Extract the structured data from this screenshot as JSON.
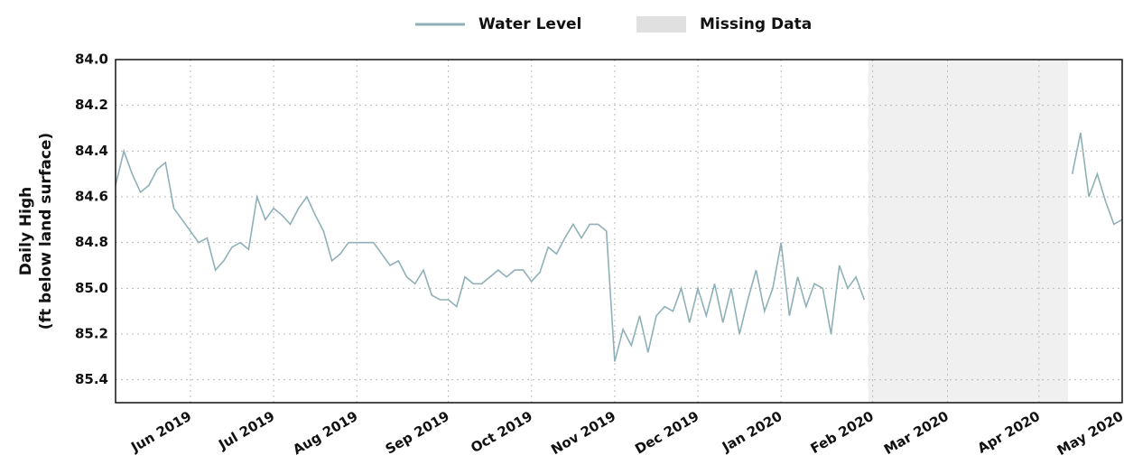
{
  "chart_data": {
    "type": "line",
    "ylabel": [
      "Daily High",
      "(ft below land surface)"
    ],
    "categories": [
      null,
      null,
      null,
      null,
      null,
      null,
      null,
      null,
      null,
      "Jun 2019",
      null,
      null,
      null,
      null,
      null,
      null,
      null,
      null,
      null,
      "Jul 2019",
      null,
      null,
      null,
      null,
      null,
      null,
      null,
      null,
      null,
      "Aug 2019",
      null,
      null,
      null,
      null,
      null,
      null,
      null,
      null,
      null,
      null,
      "Sep 2019",
      null,
      null,
      null,
      null,
      null,
      null,
      null,
      null,
      null,
      "Oct 2019",
      null,
      null,
      null,
      null,
      null,
      null,
      null,
      null,
      null,
      "Nov 2019",
      null,
      null,
      null,
      null,
      null,
      null,
      null,
      null,
      null,
      "Dec 2019",
      null,
      null,
      null,
      null,
      null,
      null,
      null,
      null,
      null,
      "Jan 2020",
      null,
      null,
      null,
      null,
      null,
      null,
      null,
      null,
      null,
      null,
      "Feb 2020",
      null,
      null,
      null,
      null,
      null,
      null,
      null,
      null,
      "Mar 2020",
      null,
      null,
      null,
      null,
      null,
      null,
      null,
      null,
      null,
      null,
      "Apr 2020",
      null,
      null,
      null,
      null,
      null,
      null,
      null,
      null,
      null,
      "May 2020"
    ],
    "series": [
      {
        "name": "Water Level",
        "color": "#8fb0b8",
        "values": [
          84.55,
          84.4,
          84.5,
          84.58,
          84.55,
          84.48,
          84.45,
          84.65,
          84.7,
          84.75,
          84.8,
          84.78,
          84.92,
          84.88,
          84.82,
          84.8,
          84.83,
          84.6,
          84.7,
          84.65,
          84.68,
          84.72,
          84.65,
          84.6,
          84.68,
          84.75,
          84.88,
          84.85,
          84.8,
          84.8,
          84.8,
          84.8,
          84.85,
          84.9,
          84.88,
          84.95,
          84.98,
          84.92,
          85.03,
          85.05,
          85.05,
          85.08,
          84.95,
          84.98,
          84.98,
          84.95,
          84.92,
          84.95,
          84.92,
          84.92,
          84.97,
          84.93,
          84.82,
          84.85,
          84.78,
          84.72,
          84.78,
          84.72,
          84.72,
          84.75,
          85.32,
          85.18,
          85.25,
          85.12,
          85.28,
          85.12,
          85.08,
          85.1,
          85.0,
          85.15,
          85.0,
          85.12,
          84.98,
          85.15,
          85.0,
          85.2,
          85.05,
          84.92,
          85.1,
          85.0,
          84.8,
          85.12,
          84.95,
          85.08,
          84.98,
          85.0,
          85.2,
          84.9,
          85.0,
          84.95,
          85.05,
          null,
          null,
          null,
          null,
          null,
          null,
          null,
          null,
          null,
          null,
          null,
          null,
          null,
          null,
          null,
          null,
          null,
          null,
          null,
          null,
          null,
          null,
          null,
          null,
          84.5,
          84.32,
          84.6,
          84.5,
          84.62,
          84.72,
          84.7
        ]
      }
    ],
    "missing": {
      "name": "Missing Data",
      "color": "#f0f0f0",
      "swatch": "#e0e0e0"
    },
    "ylim": [
      84.0,
      85.5
    ],
    "y_inverted": true,
    "yticks": [
      {
        "value": 84,
        "label": "84.0"
      },
      84.2,
      84.4,
      84.6,
      84.8,
      {
        "value": 85,
        "label": "85.0"
      },
      85.2,
      85.4
    ],
    "grid": true,
    "legend": "top"
  }
}
